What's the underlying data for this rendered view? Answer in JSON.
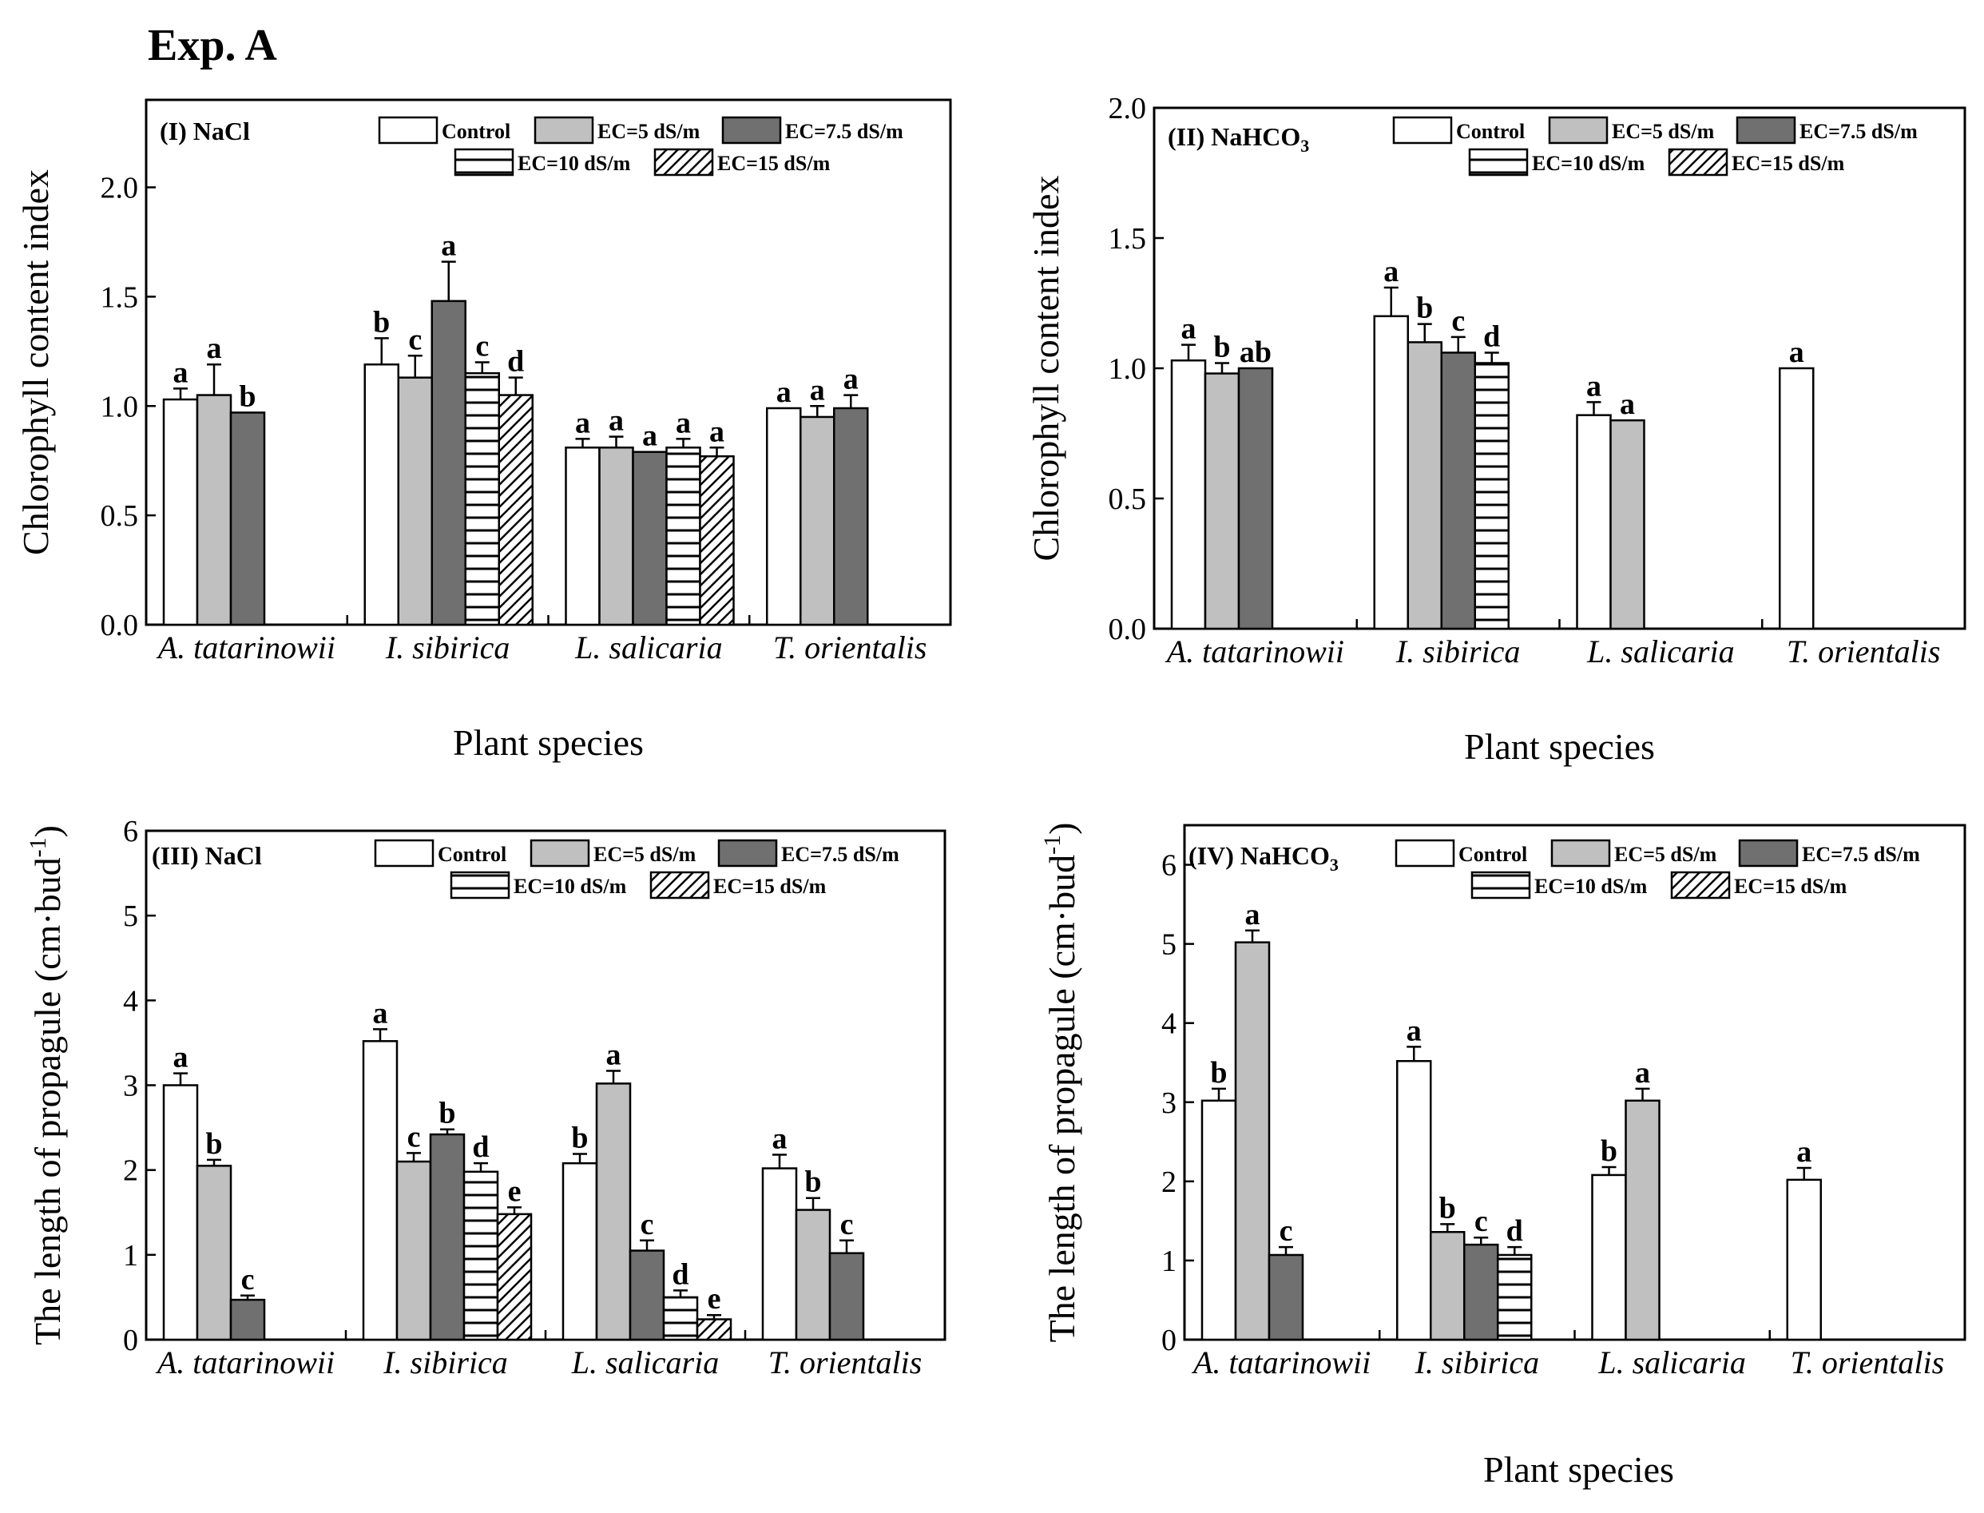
{
  "figure_title": "Exp. A",
  "legend": [
    {
      "key": "control",
      "label": "Control"
    },
    {
      "key": "ec5",
      "label": "EC=5 dS/m"
    },
    {
      "key": "ec75",
      "label": "EC=7.5 dS/m"
    },
    {
      "key": "ec10",
      "label": "EC=10 dS/m"
    },
    {
      "key": "ec15",
      "label": "EC=15 dS/m"
    }
  ],
  "colors": {
    "control": "#ffffff",
    "ec5": "#c0c0c0",
    "ec75": "#707070",
    "ec10": "#000000",
    "ec15": "#000000"
  },
  "chart_data": [
    {
      "type": "bar",
      "panel": "(I) NaCl",
      "panel_main": "(I) NaCl",
      "panel_sub": "",
      "ylabel": "Chlorophyll content index",
      "ylabel_sup": "",
      "ylabel_end": "",
      "xlabel": "Plant species",
      "ylim": [
        0,
        2.4
      ],
      "yticks": [
        "0.0",
        "0.5",
        "1.0",
        "1.5",
        "2.0"
      ],
      "categories": [
        "A. tatarinowii",
        "I. sibirica",
        "L. salicaria",
        "T. orientalis"
      ],
      "series": [
        {
          "name": "Control",
          "values": [
            1.03,
            1.19,
            0.81,
            0.99
          ],
          "errors": [
            0.05,
            0.12,
            0.04,
            0.0
          ],
          "labels": [
            "a",
            "b",
            "a",
            "a"
          ]
        },
        {
          "name": "EC=5 dS/m",
          "values": [
            1.05,
            1.13,
            0.81,
            0.95
          ],
          "errors": [
            0.14,
            0.1,
            0.05,
            0.05
          ],
          "labels": [
            "a",
            "c",
            "a",
            "a"
          ]
        },
        {
          "name": "EC=7.5 dS/m",
          "values": [
            0.97,
            1.48,
            0.79,
            0.99
          ],
          "errors": [
            0.0,
            0.18,
            0.0,
            0.06
          ],
          "labels": [
            "b",
            "a",
            "a",
            "a"
          ]
        },
        {
          "name": "EC=10 dS/m",
          "values": [
            null,
            1.15,
            0.81,
            null
          ],
          "errors": [
            null,
            0.05,
            0.04,
            null
          ],
          "labels": [
            "",
            "c",
            "a",
            ""
          ]
        },
        {
          "name": "EC=15 dS/m",
          "values": [
            null,
            1.05,
            0.77,
            null
          ],
          "errors": [
            null,
            0.08,
            0.04,
            null
          ],
          "labels": [
            "",
            "d",
            "a",
            ""
          ]
        }
      ]
    },
    {
      "type": "bar",
      "panel": "(II) NaHCO3",
      "panel_main": "(II) NaHCO",
      "panel_sub": "3",
      "ylabel": "Chlorophyll content index",
      "ylabel_sup": "",
      "ylabel_end": "",
      "xlabel": "Plant species",
      "ylim": [
        0,
        2.0
      ],
      "yticks": [
        "0.0",
        "0.5",
        "1.0",
        "1.5",
        "2.0"
      ],
      "categories": [
        "A. tatarinowii",
        "I. sibirica",
        "L. salicaria",
        "T. orientalis"
      ],
      "series": [
        {
          "name": "Control",
          "values": [
            1.03,
            1.2,
            0.82,
            1.0
          ],
          "errors": [
            0.06,
            0.11,
            0.05,
            0.0
          ],
          "labels": [
            "a",
            "a",
            "a",
            "a"
          ]
        },
        {
          "name": "EC=5 dS/m",
          "values": [
            0.98,
            1.1,
            0.8,
            null
          ],
          "errors": [
            0.04,
            0.07,
            0.0,
            null
          ],
          "labels": [
            "b",
            "b",
            "a",
            ""
          ]
        },
        {
          "name": "EC=7.5 dS/m",
          "values": [
            1.0,
            1.06,
            null,
            null
          ],
          "errors": [
            0.0,
            0.06,
            null,
            null
          ],
          "labels": [
            "ab",
            "c",
            "",
            ""
          ]
        },
        {
          "name": "EC=10 dS/m",
          "values": [
            null,
            1.02,
            null,
            null
          ],
          "errors": [
            null,
            0.04,
            null,
            null
          ],
          "labels": [
            "",
            "d",
            "",
            ""
          ]
        },
        {
          "name": "EC=15 dS/m",
          "values": [
            null,
            null,
            null,
            null
          ],
          "errors": [
            null,
            null,
            null,
            null
          ],
          "labels": [
            "",
            "",
            "",
            ""
          ]
        }
      ]
    },
    {
      "type": "bar",
      "panel": "(III) NaCl",
      "panel_main": "(III) NaCl",
      "panel_sub": "",
      "ylabel": "The length of propagule (cm·bud",
      "ylabel_sup": "-1",
      "ylabel_end": ")",
      "xlabel": "",
      "ylim": [
        0,
        6
      ],
      "yticks": [
        "0",
        "1",
        "2",
        "3",
        "4",
        "5",
        "6"
      ],
      "categories": [
        "A. tatarinowii",
        "I. sibirica",
        "L. salicaria",
        "T. orientalis"
      ],
      "series": [
        {
          "name": "Control",
          "values": [
            3.0,
            3.52,
            2.08,
            2.02
          ],
          "errors": [
            0.14,
            0.14,
            0.11,
            0.16
          ],
          "labels": [
            "a",
            "a",
            "b",
            "a"
          ]
        },
        {
          "name": "EC=5 dS/m",
          "values": [
            2.05,
            2.1,
            3.02,
            1.53
          ],
          "errors": [
            0.07,
            0.1,
            0.15,
            0.14
          ],
          "labels": [
            "b",
            "c",
            "a",
            "b"
          ]
        },
        {
          "name": "EC=7.5 dS/m",
          "values": [
            0.47,
            2.42,
            1.05,
            1.02
          ],
          "errors": [
            0.05,
            0.06,
            0.12,
            0.15
          ],
          "labels": [
            "c",
            "b",
            "c",
            "c"
          ]
        },
        {
          "name": "EC=10 dS/m",
          "values": [
            null,
            1.98,
            0.5,
            null
          ],
          "errors": [
            null,
            0.1,
            0.08,
            null
          ],
          "labels": [
            "",
            "d",
            "d",
            ""
          ]
        },
        {
          "name": "EC=15 dS/m",
          "values": [
            null,
            1.48,
            0.24,
            null
          ],
          "errors": [
            null,
            0.08,
            0.05,
            null
          ],
          "labels": [
            "",
            "e",
            "e",
            ""
          ]
        }
      ]
    },
    {
      "type": "bar",
      "panel": "(IV) NaHCO3",
      "panel_main": "(IV) NaHCO",
      "panel_sub": "3",
      "ylabel": "The length of propagule (cm·bud",
      "ylabel_sup": "-1",
      "ylabel_end": ")",
      "xlabel": "Plant species",
      "ylim": [
        0,
        6.5
      ],
      "yticks": [
        "0",
        "1",
        "2",
        "3",
        "4",
        "5",
        "6"
      ],
      "categories": [
        "A. tatarinowii",
        "I. sibirica",
        "L. salicaria",
        "T. orientalis"
      ],
      "series": [
        {
          "name": "Control",
          "values": [
            3.02,
            3.52,
            2.08,
            2.02
          ],
          "errors": [
            0.15,
            0.18,
            0.1,
            0.15
          ],
          "labels": [
            "b",
            "a",
            "b",
            "a"
          ]
        },
        {
          "name": "EC=5 dS/m",
          "values": [
            5.02,
            1.36,
            3.02,
            null
          ],
          "errors": [
            0.15,
            0.1,
            0.15,
            null
          ],
          "labels": [
            "a",
            "b",
            "a",
            ""
          ]
        },
        {
          "name": "EC=7.5 dS/m",
          "values": [
            1.07,
            1.2,
            null,
            null
          ],
          "errors": [
            0.1,
            0.09,
            null,
            null
          ],
          "labels": [
            "c",
            "c",
            "",
            ""
          ]
        },
        {
          "name": "EC=10 dS/m",
          "values": [
            null,
            1.07,
            null,
            null
          ],
          "errors": [
            null,
            0.1,
            null,
            null
          ],
          "labels": [
            "",
            "d",
            "",
            ""
          ]
        },
        {
          "name": "EC=15 dS/m",
          "values": [
            null,
            null,
            null,
            null
          ],
          "errors": [
            null,
            null,
            null,
            null
          ],
          "labels": [
            "",
            "",
            "",
            ""
          ]
        }
      ]
    }
  ]
}
